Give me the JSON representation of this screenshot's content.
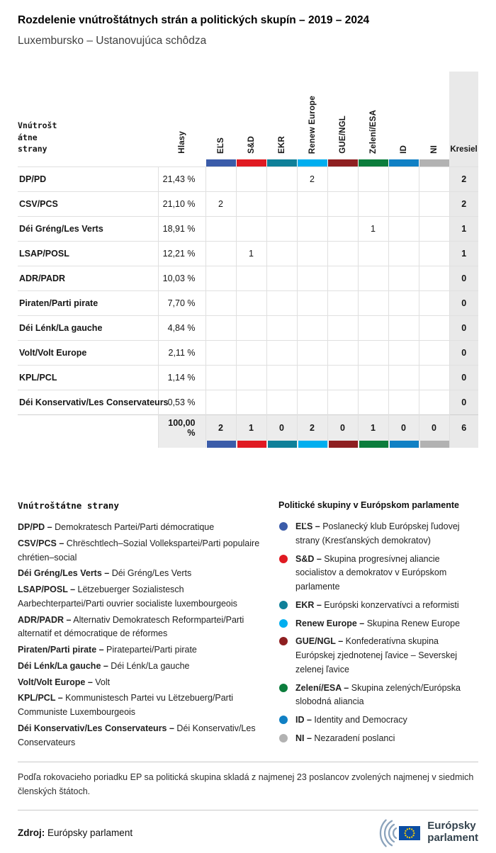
{
  "page": {
    "title": "Rozdelenie vnútroštátnych strán a politických skupín – 2019 – 2024",
    "subtitle": "Luxembursko – Ustanovujúca schôdza"
  },
  "chart_data": {
    "type": "table",
    "title": "Rozdelenie vnútroštátnych strán a politických skupín – 2019 – 2024",
    "subtitle": "Luxembursko – Ustanovujúca schôdza",
    "corner_label": "Vnútroštátne strany",
    "votes_label": "Hlasy",
    "seats_label": "Kresiel",
    "groups": [
      {
        "label": "EĽS",
        "color": "#3b5ca9"
      },
      {
        "label": "S&D",
        "color": "#e01a22"
      },
      {
        "label": "EKR",
        "color": "#0f8099"
      },
      {
        "label": "Renew Europe",
        "color": "#00aeef"
      },
      {
        "label": "GUE/NGL",
        "color": "#8e1f21"
      },
      {
        "label": "Zelení/ESA",
        "color": "#0c7d3c"
      },
      {
        "label": "ID",
        "color": "#1080c4"
      },
      {
        "label": "NI",
        "color": "#b2b2b2"
      }
    ],
    "rows": [
      {
        "party": "DP/PD",
        "votes": "21,43 %",
        "values": [
          "",
          "",
          "",
          "2",
          "",
          "",
          "",
          ""
        ],
        "seats": "2"
      },
      {
        "party": "CSV/PCS",
        "votes": "21,10 %",
        "values": [
          "2",
          "",
          "",
          "",
          "",
          "",
          "",
          ""
        ],
        "seats": "2"
      },
      {
        "party": "Déi Gréng/Les Verts",
        "votes": "18,91 %",
        "values": [
          "",
          "",
          "",
          "",
          "",
          "1",
          "",
          ""
        ],
        "seats": "1"
      },
      {
        "party": "LSAP/POSL",
        "votes": "12,21 %",
        "values": [
          "",
          "1",
          "",
          "",
          "",
          "",
          "",
          ""
        ],
        "seats": "1"
      },
      {
        "party": "ADR/PADR",
        "votes": "10,03 %",
        "values": [
          "",
          "",
          "",
          "",
          "",
          "",
          "",
          ""
        ],
        "seats": "0"
      },
      {
        "party": "Piraten/Parti pirate",
        "votes": "7,70 %",
        "values": [
          "",
          "",
          "",
          "",
          "",
          "",
          "",
          ""
        ],
        "seats": "0"
      },
      {
        "party": "Déi Lénk/La gauche",
        "votes": "4,84 %",
        "values": [
          "",
          "",
          "",
          "",
          "",
          "",
          "",
          ""
        ],
        "seats": "0"
      },
      {
        "party": "Volt/Volt Europe",
        "votes": "2,11 %",
        "values": [
          "",
          "",
          "",
          "",
          "",
          "",
          "",
          ""
        ],
        "seats": "0"
      },
      {
        "party": "KPL/PCL",
        "votes": "1,14 %",
        "values": [
          "",
          "",
          "",
          "",
          "",
          "",
          "",
          ""
        ],
        "seats": "0"
      },
      {
        "party": "Déi Konservativ/Les Conservateurs",
        "votes": "0,53 %",
        "values": [
          "",
          "",
          "",
          "",
          "",
          "",
          "",
          ""
        ],
        "seats": "0"
      }
    ],
    "total": {
      "votes": "100,00 %",
      "values": [
        "2",
        "1",
        "0",
        "2",
        "0",
        "1",
        "0",
        "0"
      ],
      "seats": "6"
    }
  },
  "legend_parties": {
    "title": "Vnútroštátne strany",
    "items": [
      {
        "abbr": "DP/PD –",
        "text": "Demokratesch Partei/Parti démocratique"
      },
      {
        "abbr": "CSV/PCS –",
        "text": "Chrëschtlech–Sozial Vollekspartei/Parti populaire chrétien–social"
      },
      {
        "abbr": "Déi Gréng/Les Verts –",
        "text": "Déi Gréng/Les Verts"
      },
      {
        "abbr": "LSAP/POSL –",
        "text": "Lëtzebuerger Sozialistesch Aarbechterpartei/Parti ouvrier socialiste luxembourgeois"
      },
      {
        "abbr": "ADR/PADR –",
        "text": "Alternativ Demokratesch Reformpartei/Parti alternatif et démocratique de réformes"
      },
      {
        "abbr": "Piraten/Parti pirate –",
        "text": "Piratepartei/Parti pirate"
      },
      {
        "abbr": "Déi Lénk/La gauche –",
        "text": "Déi Lénk/La gauche"
      },
      {
        "abbr": "Volt/Volt Europe –",
        "text": "Volt"
      },
      {
        "abbr": "KPL/PCL –",
        "text": "Kommunistesch Partei vu Lëtzebuerg/Parti Communiste Luxembourgeois"
      },
      {
        "abbr": "Déi Konservativ/Les Conservateurs –",
        "text": "Déi Konservativ/Les Conservateurs"
      }
    ]
  },
  "legend_groups": {
    "title": "Politické skupiny v Európskom parlamente",
    "items": [
      {
        "abbr": "EĽS –",
        "text": "Poslanecký klub Európskej ľudovej strany (Kresťanských demokratov)",
        "color": "#3b5ca9"
      },
      {
        "abbr": "S&D –",
        "text": "Skupina progresívnej aliancie socialistov a demokratov v Európskom parlamente",
        "color": "#e01a22"
      },
      {
        "abbr": "EKR –",
        "text": "Európski konzervatívci a reformisti",
        "color": "#0f8099"
      },
      {
        "abbr": "Renew Europe –",
        "text": "Skupina Renew Europe",
        "color": "#00aeef"
      },
      {
        "abbr": "GUE/NGL –",
        "text": "Konfederatívna skupina Európskej zjednotenej ľavice – Severskej zelenej ľavice",
        "color": "#8e1f21"
      },
      {
        "abbr": "Zelení/ESA –",
        "text": "Skupina zelených/Európska slobodná aliancia",
        "color": "#0c7d3c"
      },
      {
        "abbr": "ID –",
        "text": "Identity and Democracy",
        "color": "#1080c4"
      },
      {
        "abbr": "NI –",
        "text": "Nezaradení poslanci",
        "color": "#b2b2b2"
      }
    ]
  },
  "footnote": "Podľa rokovacieho poriadku EP sa politická skupina skladá z najmenej 23 poslancov zvolených najmenej v siedmich členských štátoch.",
  "source": {
    "label": "Zdroj:",
    "value": "Európsky parlament"
  },
  "logo": {
    "line1": "Európsky",
    "line2": "parlament"
  }
}
